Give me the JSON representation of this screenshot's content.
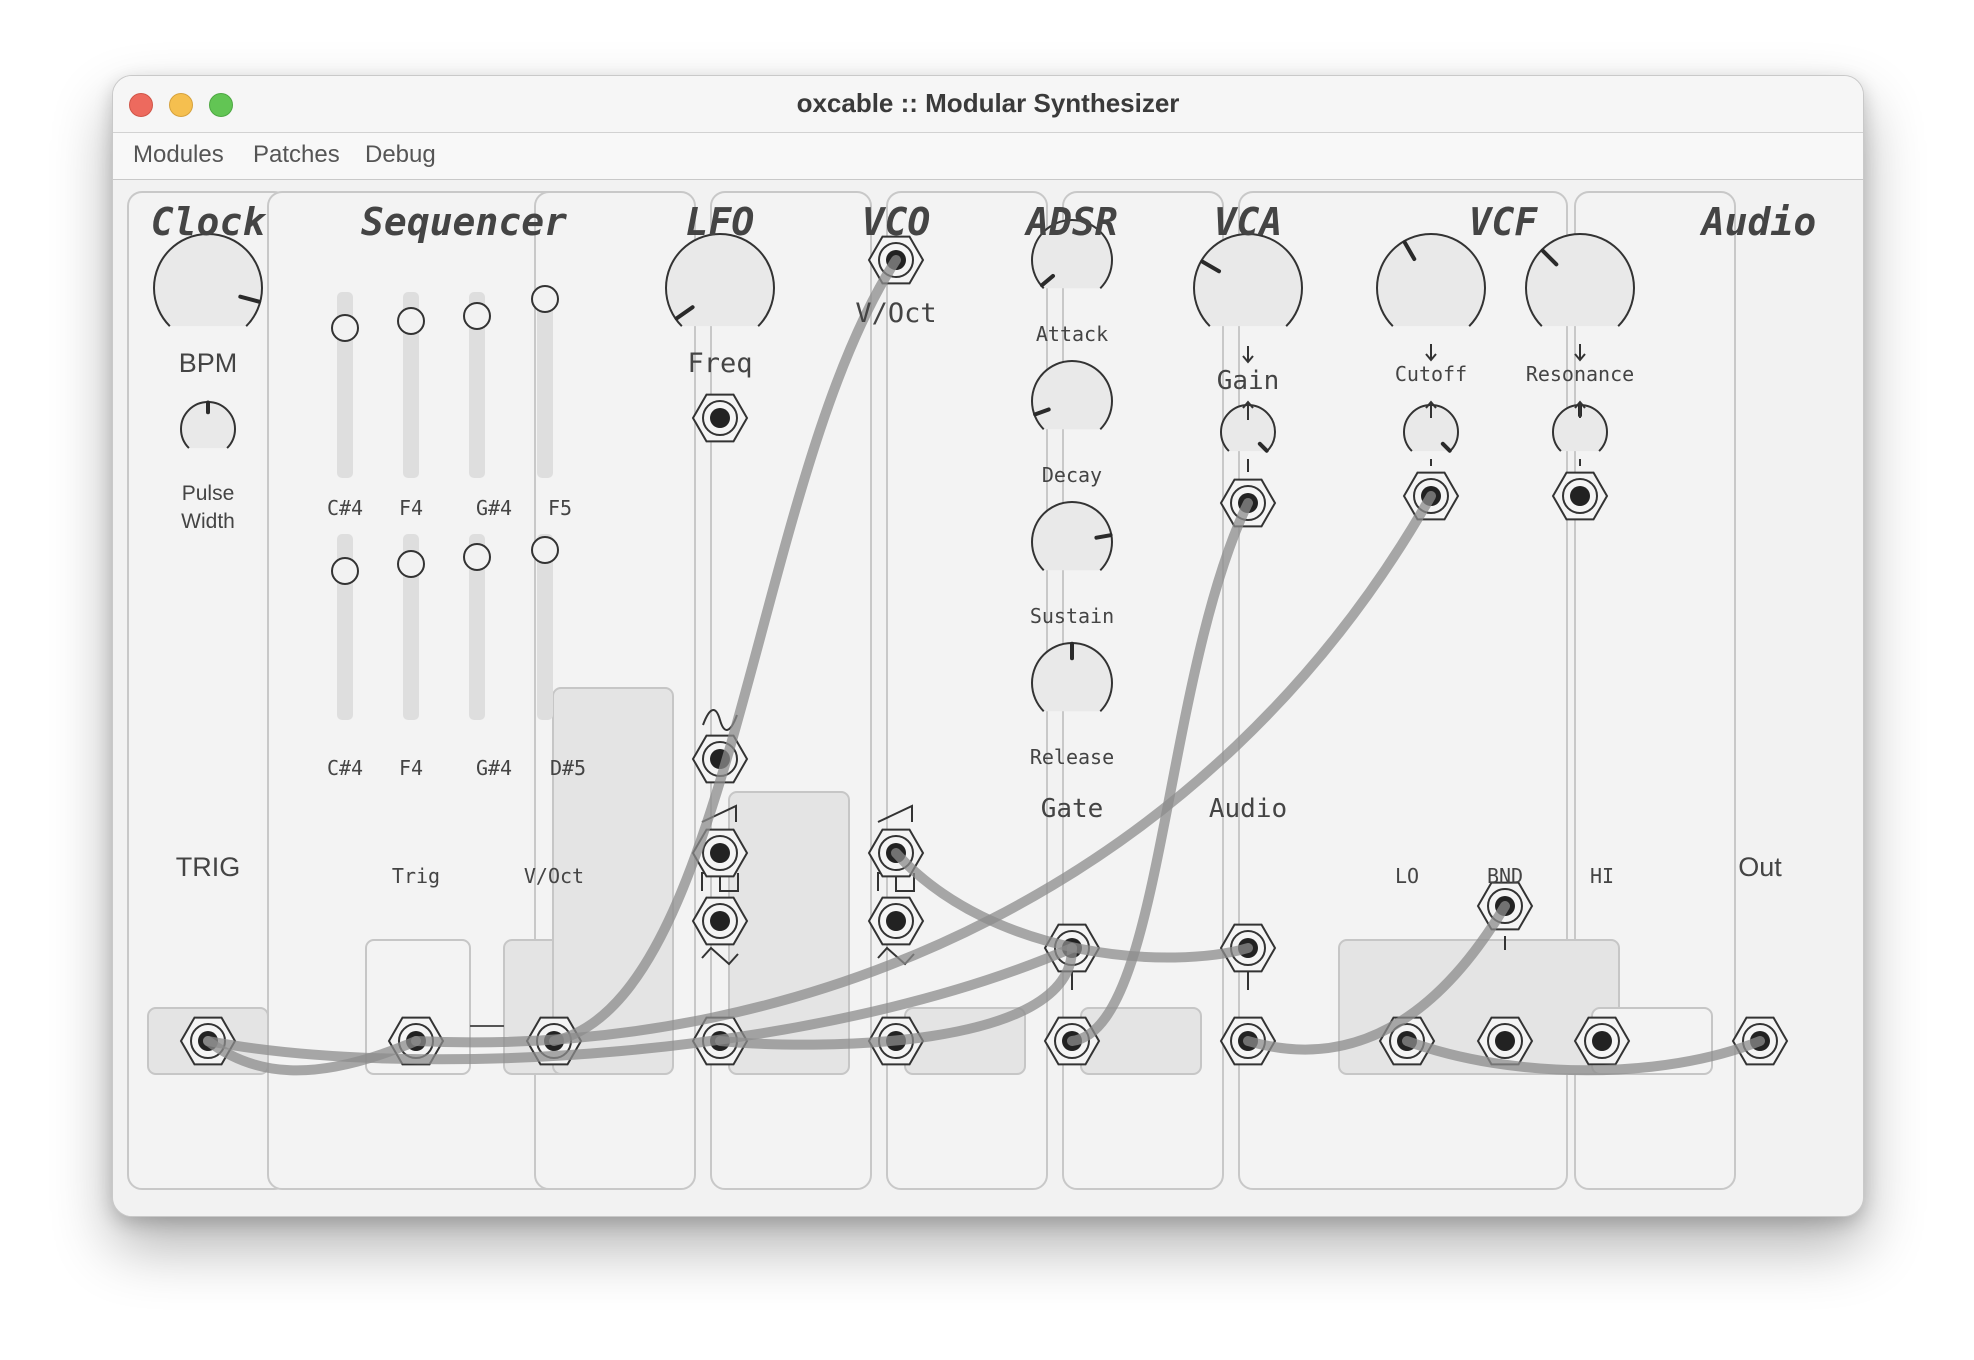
{
  "window": {
    "title": "oxcable :: Modular Synthesizer"
  },
  "menu": [
    "Modules",
    "Patches",
    "Debug"
  ],
  "modules": {
    "clock": {
      "title": "Clock",
      "bpm_label": "BPM",
      "pulse_width_label": "Pulse\nWidth",
      "trig_label": "TRIG"
    },
    "sequencer": {
      "title": "Sequencer",
      "row1_notes": [
        "C#4",
        "F4",
        "G#4",
        "F5"
      ],
      "row2_notes": [
        "C#4",
        "F4",
        "G#4",
        "D#5"
      ],
      "trig_label": "Trig",
      "voct_label": "V/Oct"
    },
    "lfo": {
      "title": "LFO",
      "freq_label": "Freq"
    },
    "vco": {
      "title": "VCO",
      "voct_label": "V/Oct"
    },
    "adsr": {
      "title": "ADSR",
      "attack_label": "Attack",
      "decay_label": "Decay",
      "sustain_label": "Sustain",
      "release_label": "Release",
      "gate_label": "Gate"
    },
    "vca": {
      "title": "VCA",
      "gain_label": "Gain",
      "audio_label": "Audio"
    },
    "vcf": {
      "title": "VCF",
      "cutoff_label": "Cutoff",
      "resonance_label": "Resonance",
      "lo_label": "LO",
      "bnd_label": "BND",
      "hi_label": "HI"
    },
    "audio": {
      "title": "Audio",
      "out_label": "Out"
    }
  },
  "colors": {
    "panel": "#f3f3f3",
    "border": "#c8c8c8",
    "cable": "#9a9a9a",
    "knob_fill": "#e9e9e9",
    "indicator": "#2a2a2a"
  }
}
